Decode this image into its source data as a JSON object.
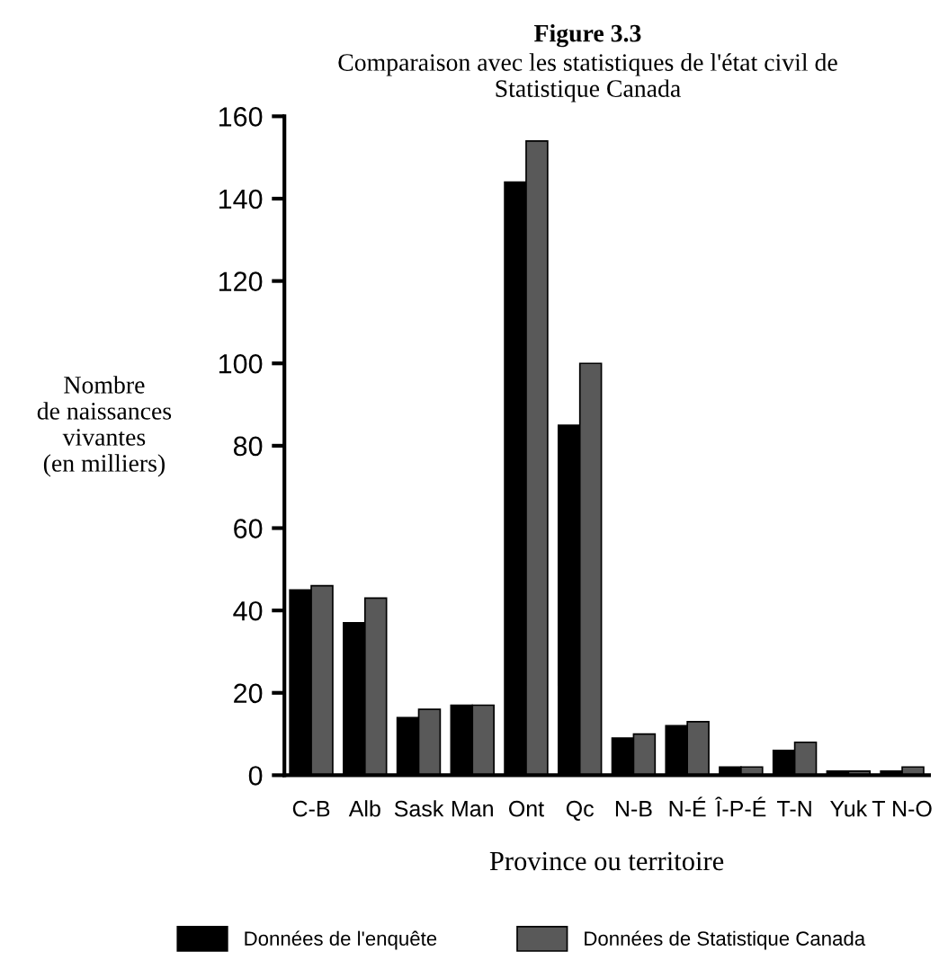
{
  "chart_data": {
    "type": "bar",
    "title": "Figure 3.3",
    "subtitle": "Comparaison avec les statistiques de l'état civil de\nStatistique Canada",
    "xlabel": "Province ou territoire",
    "ylabel": "Nombre\nde naissances\nvivantes\n(en milliers)",
    "categories": [
      "C-B",
      "Alb",
      "Sask",
      "Man",
      "Ont",
      "Qc",
      "N-B",
      "N-É",
      "Î-P-É",
      "T-N",
      "Yuk",
      "T N-O"
    ],
    "series": [
      {
        "name": "Données de l'enquête",
        "color": "#000000",
        "values": [
          45,
          37,
          14,
          17,
          144,
          85,
          9,
          12,
          2,
          6,
          1,
          1
        ]
      },
      {
        "name": "Données de Statistique Canada",
        "color": "#595959",
        "values": [
          46,
          43,
          16,
          17,
          154,
          100,
          10,
          13,
          2,
          8,
          1,
          2
        ]
      }
    ],
    "ylim": [
      0,
      160
    ],
    "yticks": [
      0,
      20,
      40,
      60,
      80,
      100,
      120,
      140,
      160
    ],
    "grid": false,
    "legend": "bottom"
  }
}
